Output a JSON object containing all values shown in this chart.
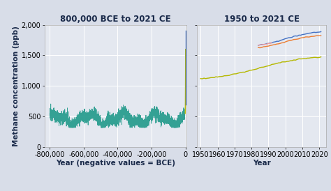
{
  "title_left": "800,000 BCE to 2021 CE",
  "title_right": "1950 to 2021 CE",
  "ylabel": "Methane concentration (ppb)",
  "xlabel_left": "Year (negative values = BCE)",
  "xlabel_right": "Year",
  "bg_color": "#d8dde8",
  "plot_bg_color": "#e4e8f0",
  "ylim": [
    0,
    2000
  ],
  "yticks": [
    0,
    500,
    1000,
    1500,
    2000
  ],
  "ytick_labels": [
    "0",
    "500",
    "1,000",
    "1,500",
    "2,000"
  ],
  "xlim_left": [
    -830000,
    5000
  ],
  "xticks_left": [
    -800000,
    -600000,
    -400000,
    -200000,
    0
  ],
  "xtick_labels_left": [
    "-800,000",
    "-600,000",
    "-400,000",
    "-200,000",
    "0"
  ],
  "xlim_right": [
    1948,
    2024
  ],
  "xticks_right": [
    1950,
    1960,
    1970,
    1980,
    1990,
    2000,
    2010,
    2020
  ],
  "teal_color": "#2a9d8f",
  "yellow_color": "#b5b800",
  "blue_color": "#4472c4",
  "orange_color": "#ed7d31",
  "pink_color": "#f4a0a0",
  "title_fontsize": 8.5,
  "label_fontsize": 7.5,
  "tick_fontsize": 7
}
